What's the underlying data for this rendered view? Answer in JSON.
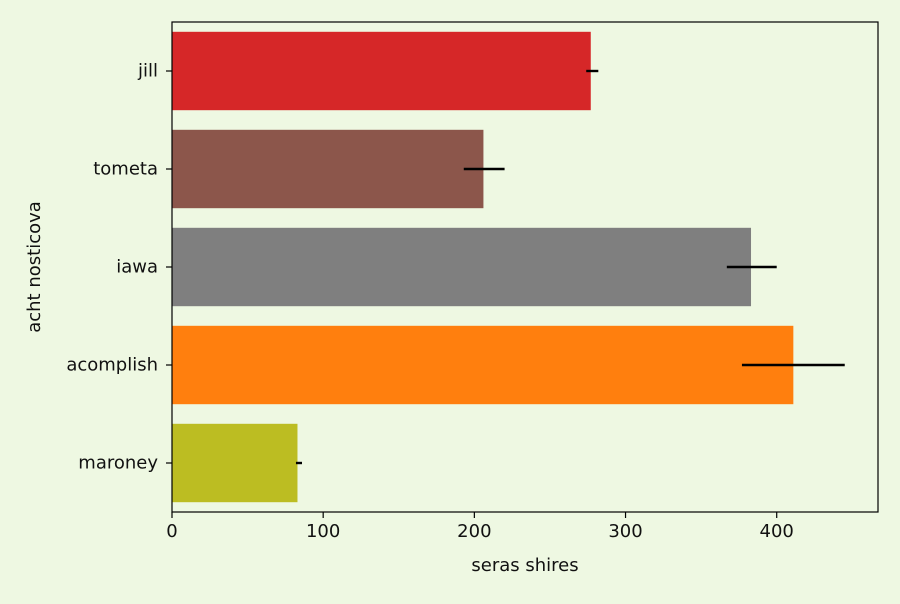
{
  "background_color": "#eef8e2",
  "chart_data": {
    "type": "bar",
    "orientation": "horizontal",
    "title": "",
    "xlabel": "seras shires",
    "ylabel": "acht nosticova",
    "xlim": [
      0,
      467
    ],
    "x_ticks": [
      0,
      100,
      200,
      300,
      400
    ],
    "grid": false,
    "legend": "none",
    "categories": [
      "jill",
      "tometa",
      "iawa",
      "acomplish",
      "maroney"
    ],
    "values": [
      277,
      206,
      383,
      411,
      83
    ],
    "error_low": [
      274,
      193,
      367,
      377,
      82
    ],
    "error_high": [
      282,
      220,
      400,
      445,
      86
    ],
    "colors": [
      "#d62728",
      "#8c564b",
      "#7f7f7f",
      "#ff7f0e",
      "#bcbd22"
    ],
    "plot_background": "#eef8e2"
  }
}
